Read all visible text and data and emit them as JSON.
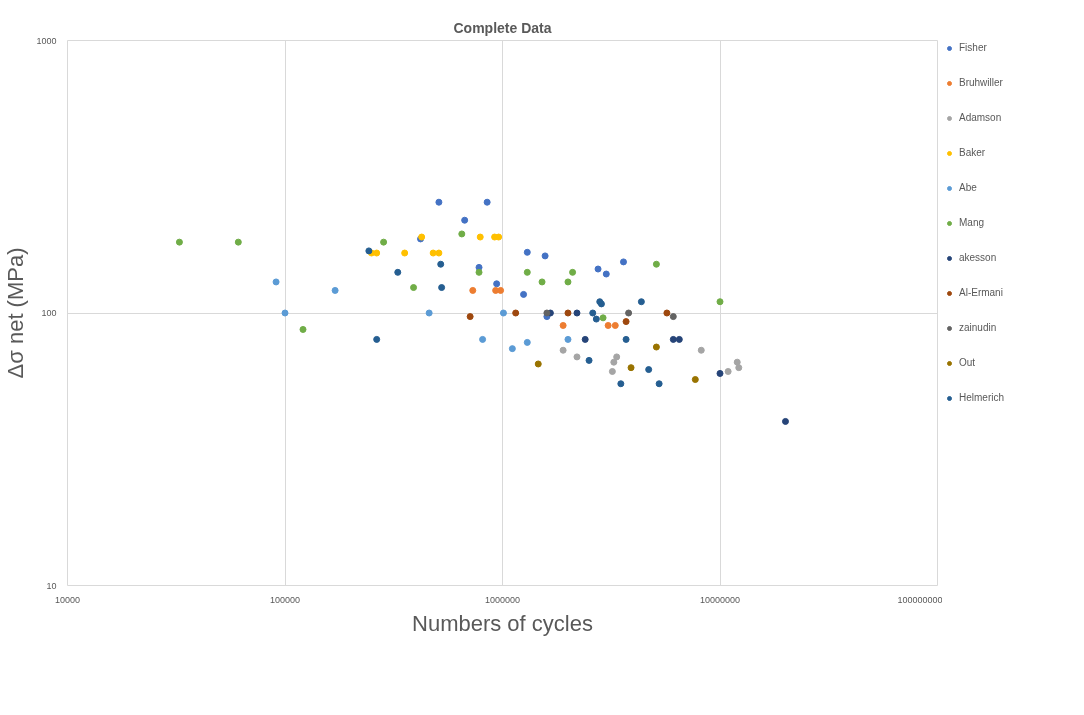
{
  "chart_data": {
    "type": "scatter",
    "title": "Complete Data",
    "xlabel": "Numbers of cycles",
    "ylabel": "Δσ net (MPa)",
    "log": "xy",
    "xlim": [
      10000,
      100000000
    ],
    "ylim": [
      10,
      1000
    ],
    "xticks": [
      10000,
      100000,
      1000000,
      10000000,
      100000000
    ],
    "yticks": [
      10,
      100,
      1000
    ],
    "grid": true,
    "legend": "right",
    "marker": "circle",
    "series": [
      {
        "name": "Fisher",
        "color": "#4472c4",
        "x": [
          510000,
          670000,
          850000,
          780000,
          940000,
          1300000,
          1570000,
          1250000,
          2750000,
          3000000,
          3600000,
          1600000,
          420000
        ],
        "values": [
          255,
          219,
          255,
          147,
          128,
          167,
          162,
          117,
          145,
          139,
          154,
          97,
          187
        ]
      },
      {
        "name": "Bruhwiller",
        "color": "#ed7d31",
        "x": [
          730000,
          930000,
          980000,
          1900000,
          3060000,
          3300000
        ],
        "values": [
          121,
          121,
          121,
          90,
          90,
          90
        ]
      },
      {
        "name": "Adamson",
        "color": "#a5a5a5",
        "x": [
          1900000,
          2200000,
          3200000,
          3250000,
          3350000,
          8200000,
          10900000,
          12000000,
          12200000
        ],
        "values": [
          73,
          69,
          61,
          66,
          69,
          73,
          61,
          66,
          63
        ]
      },
      {
        "name": "Baker",
        "color": "#ffc000",
        "x": [
          250000,
          264000,
          355000,
          425000,
          480000,
          510000,
          790000,
          920000,
          960000
        ],
        "values": [
          166,
          166,
          166,
          190,
          166,
          166,
          190,
          190,
          190
        ]
      },
      {
        "name": "Abe",
        "color": "#5b9bd5",
        "x": [
          91000,
          100000,
          170000,
          460000,
          810000,
          1010000,
          1110000,
          1300000,
          2000000
        ],
        "values": [
          130,
          100,
          121,
          100,
          80,
          100,
          74,
          78,
          80
        ]
      },
      {
        "name": "Mang",
        "color": "#70ad47",
        "x": [
          32700,
          61000,
          121000,
          284000,
          390000,
          650000,
          780000,
          1300000,
          1520000,
          2000000,
          2100000,
          5100000,
          2900000,
          10000000
        ],
        "values": [
          182,
          182,
          87,
          182,
          124,
          195,
          141,
          141,
          130,
          130,
          141,
          151,
          96,
          110
        ]
      },
      {
        "name": "akesson",
        "color": "#264478",
        "x": [
          1660000,
          2200000,
          2400000,
          6100000,
          6500000,
          10000000,
          20000000
        ],
        "values": [
          100,
          100,
          80,
          80,
          80,
          60,
          40
        ]
      },
      {
        "name": "Al-Ermani",
        "color": "#9e480e",
        "x": [
          710000,
          1150000,
          2000000,
          3700000,
          5700000
        ],
        "values": [
          97,
          100,
          100,
          93,
          100
        ]
      },
      {
        "name": "zainudin",
        "color": "#636363",
        "x": [
          1600000,
          3800000,
          6100000
        ],
        "values": [
          100,
          100,
          97
        ]
      },
      {
        "name": "Out",
        "color": "#997300",
        "x": [
          1460000,
          3900000,
          5100000,
          7700000
        ],
        "values": [
          65,
          63,
          75,
          57
        ]
      },
      {
        "name": "Helmerich",
        "color": "#255e91",
        "x": [
          243000,
          330000,
          520000,
          525000,
          264000,
          2800000,
          2850000,
          4350000,
          2600000,
          2700000,
          3700000,
          2500000,
          4700000,
          3500000,
          5250000
        ],
        "values": [
          169,
          141,
          151,
          124,
          80,
          110,
          108,
          110,
          100,
          95,
          80,
          67,
          62,
          55,
          55
        ]
      }
    ]
  }
}
